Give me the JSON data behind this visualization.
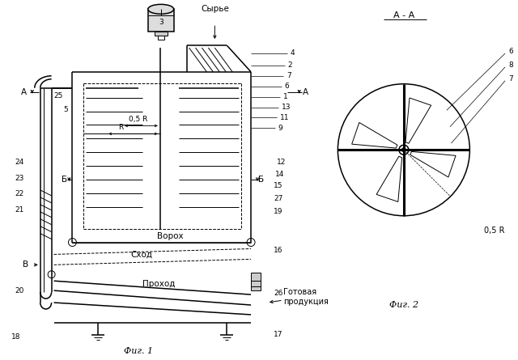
{
  "fig_width": 6.4,
  "fig_height": 4.45,
  "dpi": 100,
  "bg_color": "#ffffff",
  "fig1_caption": "Фиг. 1",
  "fig2_caption": "Фиг. 2",
  "title_aa": "А - А",
  "label_syryo": "Сырье",
  "label_voroh": "Ворох",
  "label_skhod": "Сход",
  "label_prokhod": "Проход",
  "label_gotovaya": "Готовая\nпродукция",
  "label_A": "А",
  "label_B": "Б",
  "label_V": "В",
  "label_R": "R",
  "label_05R": "0,5 R"
}
